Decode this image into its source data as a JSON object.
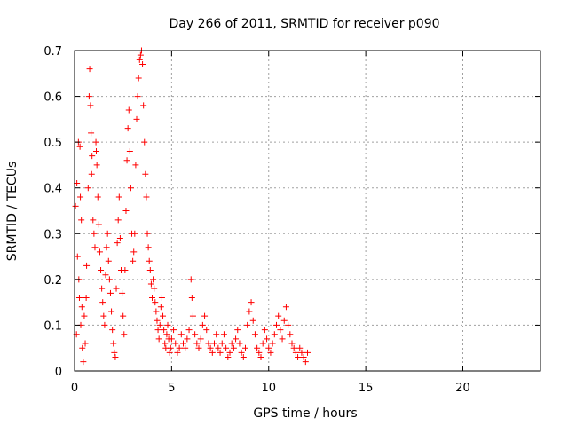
{
  "chart_data": {
    "type": "scatter",
    "title": "Day 266 of 2011, SRMTID for receiver p090",
    "xlabel": "GPS time / hours",
    "ylabel": "SRMTID / TECUs",
    "xlim": [
      0,
      24
    ],
    "ylim": [
      0,
      0.7
    ],
    "xticks": [
      0,
      5,
      10,
      15,
      20
    ],
    "xtick_labels": [
      "0",
      "5",
      "10",
      "15",
      "20"
    ],
    "yticks": [
      0,
      0.1,
      0.2,
      0.3,
      0.4,
      0.5,
      0.6,
      0.7
    ],
    "ytick_labels": [
      "0",
      "0.1",
      "0.2",
      "0.3",
      "0.4",
      "0.5",
      "0.6",
      "0.7"
    ],
    "grid": true,
    "marker": "plus",
    "color": "#ff0000",
    "series": [
      {
        "points": [
          [
            0.05,
            0.36
          ],
          [
            0.12,
            0.41
          ],
          [
            0.2,
            0.5
          ],
          [
            0.28,
            0.49
          ],
          [
            0.3,
            0.38
          ],
          [
            0.35,
            0.33
          ],
          [
            0.15,
            0.25
          ],
          [
            0.25,
            0.16
          ],
          [
            0.32,
            0.1
          ],
          [
            0.4,
            0.05
          ],
          [
            0.45,
            0.02
          ],
          [
            0.1,
            0.08
          ],
          [
            0.22,
            0.2
          ],
          [
            0.38,
            0.14
          ],
          [
            0.5,
            0.12
          ],
          [
            0.55,
            0.06
          ],
          [
            0.6,
            0.16
          ],
          [
            0.62,
            0.23
          ],
          [
            0.7,
            0.4
          ],
          [
            0.75,
            0.6
          ],
          [
            0.78,
            0.66
          ],
          [
            0.82,
            0.58
          ],
          [
            0.85,
            0.52
          ],
          [
            0.88,
            0.43
          ],
          [
            0.9,
            0.47
          ],
          [
            0.95,
            0.33
          ],
          [
            1.0,
            0.3
          ],
          [
            1.05,
            0.27
          ],
          [
            1.1,
            0.5
          ],
          [
            1.12,
            0.48
          ],
          [
            1.15,
            0.45
          ],
          [
            1.2,
            0.38
          ],
          [
            1.25,
            0.32
          ],
          [
            1.3,
            0.26
          ],
          [
            1.35,
            0.22
          ],
          [
            1.4,
            0.18
          ],
          [
            1.45,
            0.15
          ],
          [
            1.5,
            0.12
          ],
          [
            1.55,
            0.1
          ],
          [
            1.6,
            0.21
          ],
          [
            1.65,
            0.27
          ],
          [
            1.7,
            0.3
          ],
          [
            1.75,
            0.24
          ],
          [
            1.8,
            0.2
          ],
          [
            1.85,
            0.17
          ],
          [
            1.9,
            0.13
          ],
          [
            1.95,
            0.09
          ],
          [
            2.0,
            0.06
          ],
          [
            2.05,
            0.04
          ],
          [
            2.1,
            0.03
          ],
          [
            2.15,
            0.18
          ],
          [
            2.2,
            0.28
          ],
          [
            2.25,
            0.33
          ],
          [
            2.3,
            0.38
          ],
          [
            2.35,
            0.29
          ],
          [
            2.4,
            0.22
          ],
          [
            2.45,
            0.17
          ],
          [
            2.5,
            0.12
          ],
          [
            2.55,
            0.08
          ],
          [
            2.6,
            0.22
          ],
          [
            2.65,
            0.35
          ],
          [
            2.7,
            0.46
          ],
          [
            2.75,
            0.53
          ],
          [
            2.8,
            0.57
          ],
          [
            2.85,
            0.48
          ],
          [
            2.9,
            0.4
          ],
          [
            2.95,
            0.3
          ],
          [
            3.0,
            0.24
          ],
          [
            3.05,
            0.26
          ],
          [
            3.1,
            0.3
          ],
          [
            3.15,
            0.45
          ],
          [
            3.2,
            0.55
          ],
          [
            3.25,
            0.6
          ],
          [
            3.3,
            0.64
          ],
          [
            3.35,
            0.68
          ],
          [
            3.4,
            0.69
          ],
          [
            3.45,
            0.7
          ],
          [
            3.5,
            0.67
          ],
          [
            3.55,
            0.58
          ],
          [
            3.6,
            0.5
          ],
          [
            3.65,
            0.43
          ],
          [
            3.7,
            0.38
          ],
          [
            3.75,
            0.3
          ],
          [
            3.8,
            0.27
          ],
          [
            3.85,
            0.24
          ],
          [
            3.9,
            0.22
          ],
          [
            3.95,
            0.19
          ],
          [
            4.0,
            0.16
          ],
          [
            4.05,
            0.2
          ],
          [
            4.1,
            0.18
          ],
          [
            4.15,
            0.15
          ],
          [
            4.2,
            0.13
          ],
          [
            4.25,
            0.11
          ],
          [
            4.3,
            0.09
          ],
          [
            4.35,
            0.07
          ],
          [
            4.4,
            0.1
          ],
          [
            4.45,
            0.14
          ],
          [
            4.5,
            0.16
          ],
          [
            4.55,
            0.12
          ],
          [
            4.6,
            0.09
          ],
          [
            4.65,
            0.06
          ],
          [
            4.7,
            0.05
          ],
          [
            4.75,
            0.08
          ],
          [
            4.8,
            0.1
          ],
          [
            4.85,
            0.07
          ],
          [
            4.9,
            0.04
          ],
          [
            4.95,
            0.05
          ],
          [
            5.0,
            0.07
          ],
          [
            5.1,
            0.09
          ],
          [
            5.2,
            0.06
          ],
          [
            5.3,
            0.04
          ],
          [
            5.4,
            0.05
          ],
          [
            5.5,
            0.08
          ],
          [
            5.6,
            0.06
          ],
          [
            5.7,
            0.05
          ],
          [
            5.8,
            0.07
          ],
          [
            5.9,
            0.09
          ],
          [
            6.0,
            0.2
          ],
          [
            6.05,
            0.16
          ],
          [
            6.1,
            0.12
          ],
          [
            6.2,
            0.08
          ],
          [
            6.3,
            0.06
          ],
          [
            6.4,
            0.05
          ],
          [
            6.5,
            0.07
          ],
          [
            6.6,
            0.1
          ],
          [
            6.7,
            0.12
          ],
          [
            6.8,
            0.09
          ],
          [
            6.9,
            0.06
          ],
          [
            7.0,
            0.05
          ],
          [
            7.1,
            0.04
          ],
          [
            7.2,
            0.06
          ],
          [
            7.3,
            0.08
          ],
          [
            7.4,
            0.05
          ],
          [
            7.5,
            0.04
          ],
          [
            7.6,
            0.06
          ],
          [
            7.7,
            0.08
          ],
          [
            7.8,
            0.05
          ],
          [
            7.9,
            0.03
          ],
          [
            8.0,
            0.04
          ],
          [
            8.1,
            0.06
          ],
          [
            8.2,
            0.05
          ],
          [
            8.3,
            0.07
          ],
          [
            8.4,
            0.09
          ],
          [
            8.5,
            0.06
          ],
          [
            8.6,
            0.04
          ],
          [
            8.7,
            0.03
          ],
          [
            8.8,
            0.05
          ],
          [
            8.9,
            0.1
          ],
          [
            9.0,
            0.13
          ],
          [
            9.1,
            0.15
          ],
          [
            9.2,
            0.11
          ],
          [
            9.3,
            0.08
          ],
          [
            9.4,
            0.05
          ],
          [
            9.5,
            0.04
          ],
          [
            9.6,
            0.03
          ],
          [
            9.7,
            0.06
          ],
          [
            9.8,
            0.09
          ],
          [
            9.9,
            0.07
          ],
          [
            10.0,
            0.05
          ],
          [
            10.1,
            0.04
          ],
          [
            10.2,
            0.06
          ],
          [
            10.3,
            0.08
          ],
          [
            10.4,
            0.1
          ],
          [
            10.5,
            0.12
          ],
          [
            10.6,
            0.09
          ],
          [
            10.7,
            0.07
          ],
          [
            10.8,
            0.11
          ],
          [
            10.9,
            0.14
          ],
          [
            11.0,
            0.1
          ],
          [
            11.1,
            0.08
          ],
          [
            11.2,
            0.06
          ],
          [
            11.3,
            0.05
          ],
          [
            11.4,
            0.04
          ],
          [
            11.5,
            0.03
          ],
          [
            11.6,
            0.05
          ],
          [
            11.7,
            0.04
          ],
          [
            11.8,
            0.03
          ],
          [
            11.9,
            0.02
          ],
          [
            12.0,
            0.04
          ]
        ]
      }
    ]
  }
}
